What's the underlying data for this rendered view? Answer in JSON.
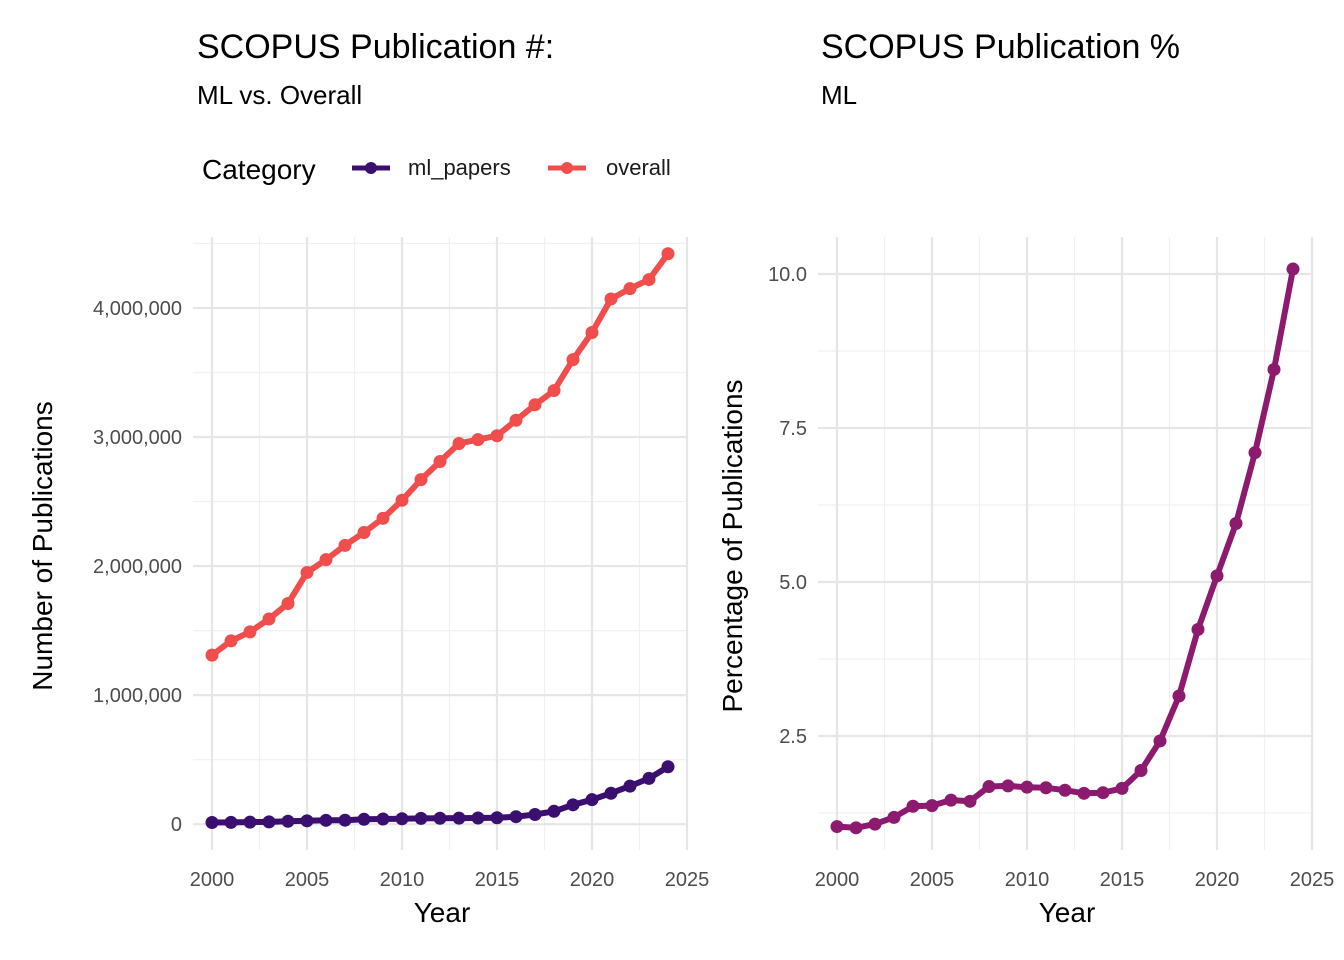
{
  "chart_data": [
    {
      "type": "line",
      "title": "SCOPUS Publication #:",
      "subtitle": "ML vs. Overall",
      "xlabel": "Year",
      "ylabel": "Number of Publications",
      "xlim": [
        1999,
        2025
      ],
      "ylim": [
        -200000,
        4550000
      ],
      "xticks": [
        2000,
        2005,
        2010,
        2015,
        2020,
        2025
      ],
      "xtick_labels": [
        "2000",
        "2005",
        "2010",
        "2015",
        "2020",
        "2025"
      ],
      "yticks": [
        0,
        1000000,
        2000000,
        3000000,
        4000000
      ],
      "ytick_labels": [
        "0",
        "1,000,000",
        "2,000,000",
        "3,000,000",
        "4,000,000"
      ],
      "grid": true,
      "legend": {
        "title": "Category",
        "position": "top"
      },
      "x": [
        2000,
        2001,
        2002,
        2003,
        2004,
        2005,
        2006,
        2007,
        2008,
        2009,
        2010,
        2011,
        2012,
        2013,
        2014,
        2015,
        2016,
        2017,
        2018,
        2019,
        2020,
        2021,
        2022,
        2023,
        2024
      ],
      "series": [
        {
          "name": "ml_papers",
          "color": "#3B0F6F",
          "values": [
            13000,
            14000,
            16000,
            18000,
            23000,
            26000,
            30000,
            31000,
            38000,
            40000,
            42000,
            45000,
            46000,
            47000,
            48000,
            50000,
            58000,
            75000,
            100000,
            150000,
            190000,
            240000,
            295000,
            355000,
            445000
          ]
        },
        {
          "name": "overall",
          "color": "#F04D4D",
          "values": [
            1310000,
            1420000,
            1490000,
            1590000,
            1710000,
            1950000,
            2050000,
            2160000,
            2260000,
            2370000,
            2510000,
            2670000,
            2810000,
            2950000,
            2980000,
            3010000,
            3130000,
            3250000,
            3360000,
            3600000,
            3810000,
            4070000,
            4150000,
            4220000,
            4420000
          ]
        }
      ]
    },
    {
      "type": "line",
      "title": "SCOPUS Publication %",
      "subtitle": "ML",
      "xlabel": "Year",
      "ylabel": "Percentage of Publications",
      "xlim": [
        1999,
        2025
      ],
      "ylim": [
        0.65,
        10.6
      ],
      "xticks": [
        2000,
        2005,
        2010,
        2015,
        2020,
        2025
      ],
      "xtick_labels": [
        "2000",
        "2005",
        "2010",
        "2015",
        "2020",
        "2025"
      ],
      "yticks": [
        2.5,
        5.0,
        7.5,
        10.0
      ],
      "ytick_labels": [
        "2.5",
        "5.0",
        "7.5",
        "10.0"
      ],
      "grid": true,
      "x": [
        2000,
        2001,
        2002,
        2003,
        2004,
        2005,
        2006,
        2007,
        2008,
        2009,
        2010,
        2011,
        2012,
        2013,
        2014,
        2015,
        2016,
        2017,
        2018,
        2019,
        2020,
        2021,
        2022,
        2023,
        2024
      ],
      "series": [
        {
          "color": "#8C1A6E",
          "values": [
            1.03,
            1.01,
            1.07,
            1.18,
            1.36,
            1.37,
            1.46,
            1.44,
            1.68,
            1.69,
            1.67,
            1.66,
            1.62,
            1.57,
            1.58,
            1.65,
            1.94,
            2.42,
            3.15,
            4.23,
            5.1,
            5.95,
            7.1,
            8.45,
            10.08
          ]
        }
      ]
    }
  ]
}
